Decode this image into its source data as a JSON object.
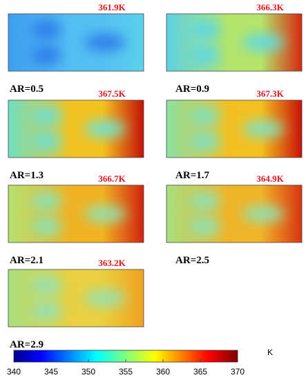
{
  "panels": [
    {
      "label": "AR=0.5",
      "max_temp": "361.9K"
    },
    {
      "label": "AR=0.9",
      "max_temp": "366.3K"
    },
    {
      "label": "AR=1.3",
      "max_temp": "367.5K"
    },
    {
      "label": "AR=1.7",
      "max_temp": "367.3K"
    },
    {
      "label": "AR=2.1",
      "max_temp": "366.7K"
    },
    {
      "label": "AR=2.5",
      "max_temp": "364.9K"
    },
    {
      "label": "AR=2.9",
      "max_temp": "363.2K"
    }
  ],
  "colorbar": {
    "range": [
      340,
      370
    ],
    "ticks": [
      340,
      345,
      350,
      355,
      360,
      365,
      370
    ],
    "unit": "K"
  }
}
